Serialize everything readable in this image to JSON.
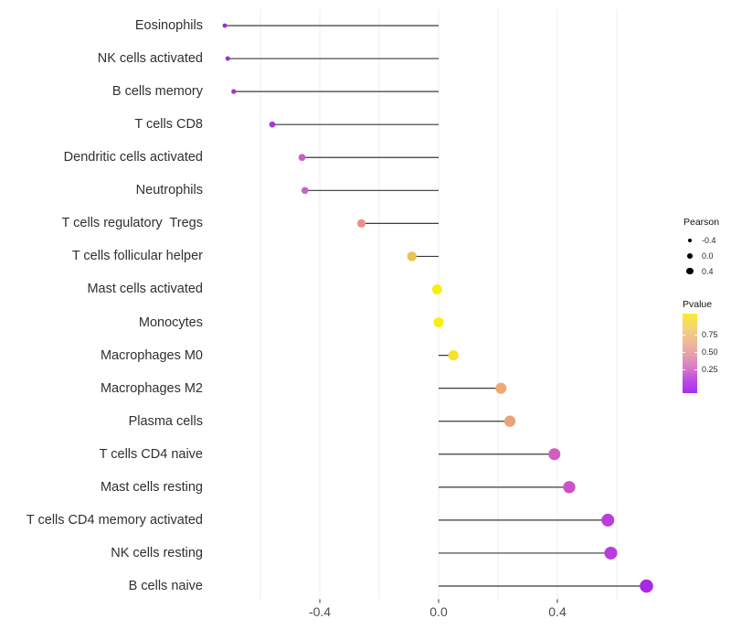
{
  "chart_data": {
    "type": "lollipop",
    "title": "",
    "xlabel": "",
    "ylabel": "",
    "grid": "on",
    "x_axis": {
      "xlim": [
        -0.8,
        0.78
      ],
      "ticks": [
        {
          "value": -0.4,
          "label": "-0.4"
        },
        {
          "value": 0.0,
          "label": "0.0"
        },
        {
          "value": 0.4,
          "label": "0.4"
        }
      ],
      "gridline_values": [
        -0.6,
        -0.4,
        -0.2,
        0.0,
        0.2,
        0.4,
        0.6
      ]
    },
    "rows": [
      {
        "label": "Eosinophils",
        "pearson": -0.72,
        "dot_color": "#9a2ed2"
      },
      {
        "label": "NK cells activated",
        "pearson": -0.71,
        "dot_color": "#9b30d0"
      },
      {
        "label": "B cells memory",
        "pearson": -0.69,
        "dot_color": "#a235cd"
      },
      {
        "label": "T cells CD8",
        "pearson": -0.56,
        "dot_color": "#aa3ad2"
      },
      {
        "label": "Dendritic cells activated",
        "pearson": -0.46,
        "dot_color": "#c75fc8"
      },
      {
        "label": "Neutrophils",
        "pearson": -0.45,
        "dot_color": "#c663c4"
      },
      {
        "label": "T cells regulatory  Tregs",
        "pearson": -0.26,
        "dot_color": "#e8918a"
      },
      {
        "label": "T cells follicular helper",
        "pearson": -0.09,
        "dot_color": "#eac354"
      },
      {
        "label": "Mast cells activated",
        "pearson": -0.005,
        "dot_color": "#f7ee12"
      },
      {
        "label": "Monocytes",
        "pearson": 0.0,
        "dot_color": "#f7ee12"
      },
      {
        "label": "Macrophages M0",
        "pearson": 0.05,
        "dot_color": "#f4e32a"
      },
      {
        "label": "Macrophages M2",
        "pearson": 0.21,
        "dot_color": "#efa878"
      },
      {
        "label": "Plasma cells",
        "pearson": 0.24,
        "dot_color": "#eca17b"
      },
      {
        "label": "T cells CD4 naive",
        "pearson": 0.39,
        "dot_color": "#d15fc0"
      },
      {
        "label": "Mast cells resting",
        "pearson": 0.44,
        "dot_color": "#cd52c8"
      },
      {
        "label": "T cells CD4 memory activated",
        "pearson": 0.57,
        "dot_color": "#bb3edb"
      },
      {
        "label": "NK cells resting",
        "pearson": 0.58,
        "dot_color": "#b93cdd"
      },
      {
        "label": "B cells naive",
        "pearson": 0.7,
        "dot_color": "#a72ae2"
      }
    ],
    "legend": {
      "size": {
        "title": "Pearson",
        "dot_color": "#000000",
        "entries": [
          {
            "label": "-0.4",
            "radius": 2.2
          },
          {
            "label": "0.0",
            "radius": 2.9
          },
          {
            "label": "0.4",
            "radius": 3.6
          }
        ]
      },
      "color": {
        "title": "Pvalue",
        "tick_labels": [
          "0.75",
          "0.50",
          "0.25"
        ],
        "gradient_top": "#f9ec2d",
        "gradient_bottom": "#a62df2"
      }
    },
    "style": {
      "background": "#ffffff",
      "gridline_color": "#ececec",
      "stem_color": "#3a3a3a",
      "tick_color": "#333333"
    }
  }
}
